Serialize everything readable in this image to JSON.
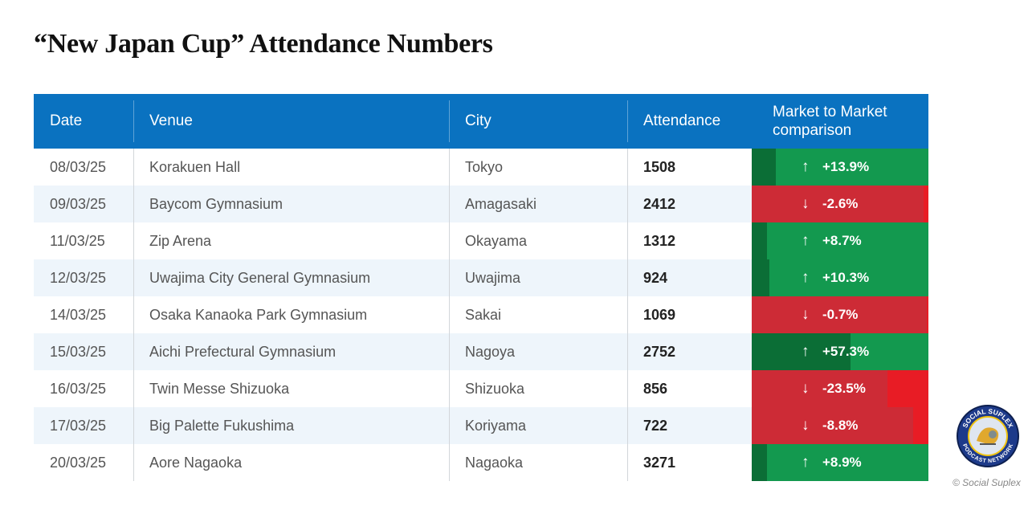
{
  "title": "“New Japan Cup” Attendance Numbers",
  "columns": [
    "Date",
    "Venue",
    "City",
    "Attendance",
    "Market to Market comparison"
  ],
  "rows": [
    {
      "date": "08/03/25",
      "venue": "Korakuen Hall",
      "city": "Tokyo",
      "attendance": "1508",
      "change": "+13.9%",
      "direction": "up",
      "magnitude": 0.139
    },
    {
      "date": "09/03/25",
      "venue": "Baycom Gymnasium",
      "city": "Amagasaki",
      "attendance": "2412",
      "change": "-2.6%",
      "direction": "down",
      "magnitude": 0.026
    },
    {
      "date": "11/03/25",
      "venue": "Zip Arena",
      "city": "Okayama",
      "attendance": "1312",
      "change": "+8.7%",
      "direction": "up",
      "magnitude": 0.087
    },
    {
      "date": "12/03/25",
      "venue": "Uwajima City General Gymnasium",
      "city": "Uwajima",
      "attendance": "924",
      "change": "+10.3%",
      "direction": "up",
      "magnitude": 0.103
    },
    {
      "date": "14/03/25",
      "venue": "Osaka Kanaoka Park Gymnasium",
      "city": "Sakai",
      "attendance": "1069",
      "change": "-0.7%",
      "direction": "down",
      "magnitude": 0.007
    },
    {
      "date": "15/03/25",
      "venue": "Aichi Prefectural Gymnasium",
      "city": "Nagoya",
      "attendance": "2752",
      "change": "+57.3%",
      "direction": "up",
      "magnitude": 0.573
    },
    {
      "date": "16/03/25",
      "venue": "Twin Messe Shizuoka",
      "city": "Shizuoka",
      "attendance": "856",
      "change": "-23.5%",
      "direction": "down",
      "magnitude": 0.235
    },
    {
      "date": "17/03/25",
      "venue": "Big Palette Fukushima",
      "city": "Koriyama",
      "attendance": "722",
      "change": "-8.8%",
      "direction": "down",
      "magnitude": 0.088
    },
    {
      "date": "20/03/25",
      "venue": "Aore Nagaoka",
      "city": "Nagaoka",
      "attendance": "3271",
      "change": "+8.9%",
      "direction": "up",
      "magnitude": 0.089
    }
  ],
  "icons": {
    "up": "arrow-up-icon",
    "down": "arrow-down-icon"
  },
  "colors": {
    "header": "#0a72c0",
    "up": "#13994f",
    "up_band": "#0b6e36",
    "down": "#cd2b36",
    "down_band": "#e81c25"
  },
  "logo": {
    "top_text": "SOCIAL SUPLEX",
    "bottom_text": "PODCAST NETWORK"
  },
  "copyright": "© Social Suplex"
}
